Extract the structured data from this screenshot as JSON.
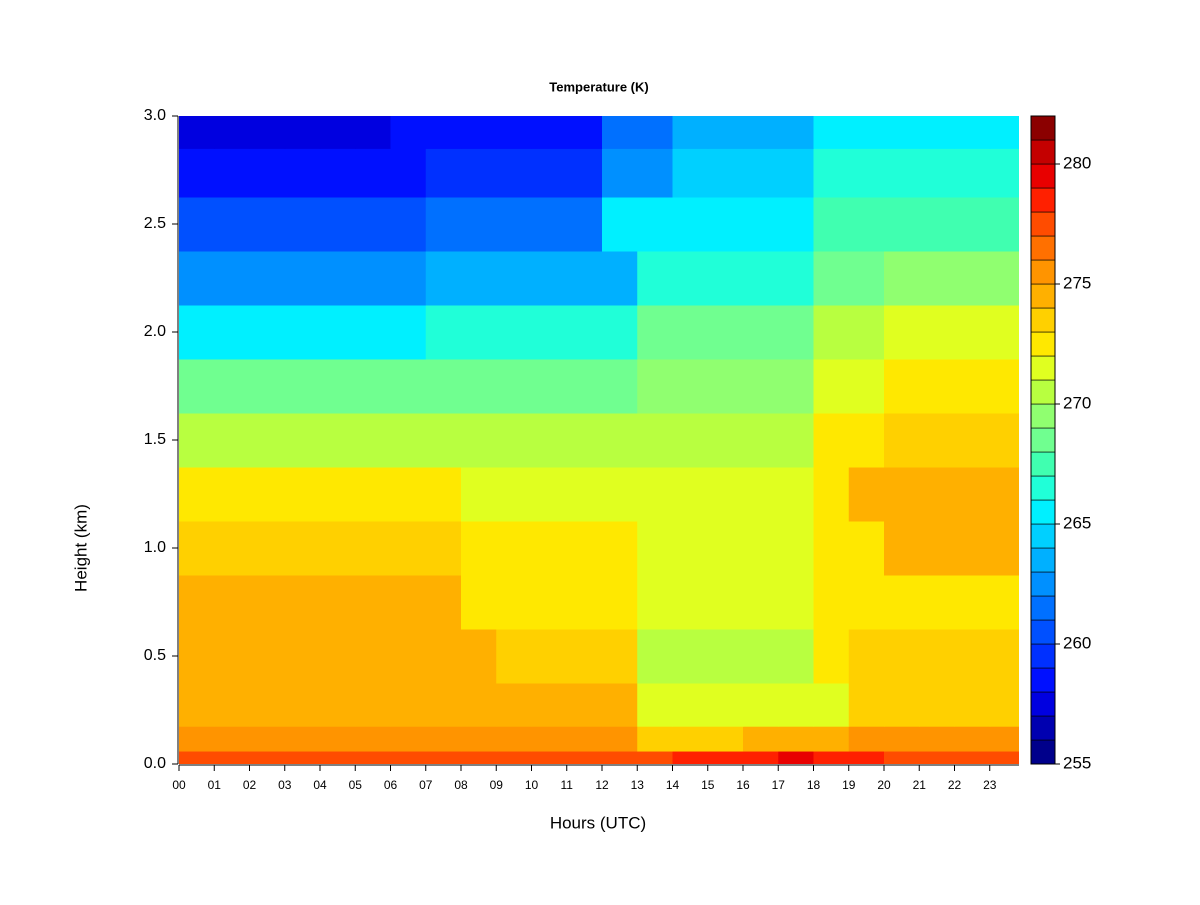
{
  "chart_data": {
    "type": "heatmap",
    "title": "Temperature (K)",
    "x_label": "Hours (UTC)",
    "y_label": "Height (km)",
    "xlim": [
      0,
      23.83
    ],
    "ylim": [
      0,
      3
    ],
    "xticks": [
      {
        "value": 0,
        "label": "00"
      },
      {
        "value": 1,
        "label": "01"
      },
      {
        "value": 2,
        "label": "02"
      },
      {
        "value": 3,
        "label": "03"
      },
      {
        "value": 4,
        "label": "04"
      },
      {
        "value": 5,
        "label": "05"
      },
      {
        "value": 6,
        "label": "06"
      },
      {
        "value": 7,
        "label": "07"
      },
      {
        "value": 8,
        "label": "08"
      },
      {
        "value": 9,
        "label": "09"
      },
      {
        "value": 10,
        "label": "10"
      },
      {
        "value": 11,
        "label": "11"
      },
      {
        "value": 12,
        "label": "12"
      },
      {
        "value": 13,
        "label": "13"
      },
      {
        "value": 14,
        "label": "14"
      },
      {
        "value": 15,
        "label": "15"
      },
      {
        "value": 16,
        "label": "16"
      },
      {
        "value": 17,
        "label": "17"
      },
      {
        "value": 18,
        "label": "18"
      },
      {
        "value": 19,
        "label": "19"
      },
      {
        "value": 20,
        "label": "20"
      },
      {
        "value": 21,
        "label": "21"
      },
      {
        "value": 22,
        "label": "22"
      },
      {
        "value": 23,
        "label": "23"
      }
    ],
    "yticks": [
      {
        "value": 0,
        "label": "0.0"
      },
      0.5,
      {
        "value": 1,
        "label": "1.0"
      },
      1.5,
      {
        "value": 2,
        "label": "2.0"
      },
      2.5,
      {
        "value": 3,
        "label": "3.0"
      }
    ],
    "x": [
      0.5,
      1.5,
      2.5,
      3.5,
      4.5,
      5.5,
      6.5,
      7.5,
      8.5,
      9.5,
      10.5,
      11.5,
      12.5,
      13.5,
      14.5,
      15.5,
      16.5,
      17.5,
      18.5,
      19.5,
      20.5,
      21.5,
      22.5,
      23.5
    ],
    "y": [
      0.02,
      0.1,
      0.25,
      0.5,
      0.75,
      1.0,
      1.25,
      1.5,
      1.75,
      2.0,
      2.25,
      2.5,
      2.75,
      2.95
    ],
    "z": [
      [
        277,
        277,
        277,
        277,
        277,
        277,
        277,
        277,
        277,
        277,
        277,
        277,
        277,
        277,
        278,
        278,
        278,
        279,
        278,
        278,
        277,
        277,
        277,
        277
      ],
      [
        275,
        275,
        275,
        275,
        275,
        275,
        275,
        275,
        275,
        275,
        275,
        275,
        275,
        273,
        273,
        273,
        274,
        274,
        274,
        275,
        275,
        275,
        275,
        275
      ],
      [
        274,
        274,
        274,
        274,
        274,
        274,
        274,
        274,
        274,
        274,
        274,
        274,
        274,
        271,
        271,
        271,
        271,
        271,
        271,
        273,
        273,
        273,
        273,
        273
      ],
      [
        274,
        274,
        274,
        274,
        274,
        274,
        274,
        274,
        274,
        273,
        273,
        273,
        273,
        270,
        270,
        270,
        270,
        270,
        272,
        273,
        273,
        273,
        273,
        273
      ],
      [
        274,
        274,
        274,
        274,
        274,
        274,
        274,
        274,
        272,
        272,
        272,
        272,
        272,
        271,
        271,
        271,
        271,
        271,
        272,
        272,
        272,
        272,
        272,
        272
      ],
      [
        273,
        273,
        273,
        273,
        273,
        273,
        273,
        273,
        272,
        272,
        272,
        272,
        272,
        271,
        271,
        271,
        271,
        271,
        272,
        272,
        274,
        274,
        274,
        274
      ],
      [
        272,
        272,
        272,
        272,
        272,
        272,
        272,
        272,
        271,
        271,
        271,
        271,
        271,
        271,
        271,
        271,
        271,
        271,
        272,
        274,
        274,
        274,
        274,
        274
      ],
      [
        270,
        270,
        270,
        270,
        270,
        270,
        270,
        270,
        270,
        270,
        270,
        270,
        270,
        270,
        270,
        270,
        270,
        270,
        272,
        272,
        273,
        273,
        273,
        273
      ],
      [
        268,
        268,
        268,
        268,
        268,
        268,
        268,
        268,
        268,
        268,
        268,
        268,
        268,
        269,
        269,
        269,
        269,
        269,
        271,
        271,
        272,
        272,
        272,
        272
      ],
      [
        265,
        265,
        265,
        265,
        265,
        265,
        265,
        266,
        266,
        266,
        266,
        266,
        266,
        268,
        268,
        268,
        268,
        268,
        270,
        270,
        271,
        271,
        271,
        271
      ],
      [
        262,
        262,
        262,
        262,
        262,
        262,
        262,
        263,
        263,
        263,
        263,
        263,
        263,
        266,
        266,
        266,
        266,
        266,
        268,
        268,
        269,
        269,
        269,
        269
      ],
      [
        260,
        260,
        260,
        260,
        260,
        260,
        260,
        261,
        261,
        261,
        261,
        261,
        265,
        265,
        265,
        265,
        265,
        265,
        267,
        267,
        267,
        267,
        267,
        267
      ],
      [
        258,
        258,
        258,
        258,
        258,
        258,
        258,
        259,
        259,
        259,
        259,
        259,
        262,
        262,
        264,
        264,
        264,
        264,
        266,
        266,
        266,
        266,
        266,
        266
      ],
      [
        257,
        257,
        257,
        257,
        257,
        257,
        258,
        258,
        258,
        258,
        258,
        258,
        261,
        261,
        263,
        263,
        263,
        263,
        265,
        265,
        265,
        265,
        265,
        265
      ]
    ],
    "zlim": [
      255,
      282
    ],
    "levels": [
      255,
      256,
      257,
      258,
      259,
      260,
      261,
      262,
      263,
      264,
      265,
      266,
      267,
      268,
      269,
      270,
      271,
      272,
      273,
      274,
      275,
      276,
      277,
      278,
      279,
      280,
      281,
      282
    ],
    "colors": [
      "#00008b",
      "#0000b0",
      "#0000e0",
      "#0010ff",
      "#0030ff",
      "#0050ff",
      "#0070ff",
      "#0090ff",
      "#00b0ff",
      "#00d0ff",
      "#00f0ff",
      "#20ffd8",
      "#40ffb0",
      "#70ff90",
      "#90ff70",
      "#b8ff40",
      "#e0ff20",
      "#ffe800",
      "#ffd000",
      "#ffb000",
      "#ff9400",
      "#ff7000",
      "#ff4c00",
      "#ff2000",
      "#e80000",
      "#c40000",
      "#8b0000"
    ],
    "zticks": [
      255,
      260,
      265,
      270,
      275,
      280
    ]
  }
}
